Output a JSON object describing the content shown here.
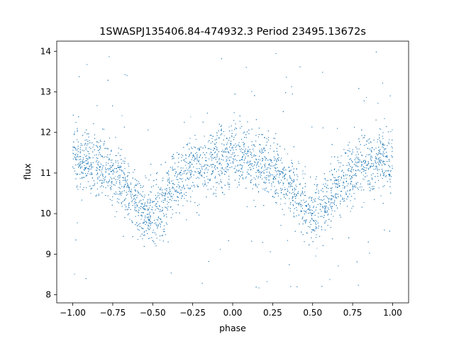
{
  "chart_data": {
    "type": "scatter",
    "title": "1SWASPJ135406.84-474932.3 Period 23495.13672s",
    "xlabel": "phase",
    "ylabel": "flux",
    "xlim": [
      -1.1,
      1.1
    ],
    "ylim": [
      7.8,
      14.25
    ],
    "x_ticks": [
      -1.0,
      -0.75,
      -0.5,
      -0.25,
      0.0,
      0.25,
      0.5,
      0.75,
      1.0
    ],
    "x_tick_labels": [
      "−1.00",
      "−0.75",
      "−0.50",
      "−0.25",
      "0.00",
      "0.25",
      "0.50",
      "0.75",
      "1.00"
    ],
    "y_ticks": [
      8,
      9,
      10,
      11,
      12,
      13,
      14
    ],
    "y_tick_labels": [
      "8",
      "9",
      "10",
      "11",
      "12",
      "13",
      "14"
    ],
    "grid": false,
    "legend": "none",
    "marker_color": "#1f77b4",
    "phase_range": [
      -1.0,
      1.0
    ],
    "light_curve": {
      "phase": [
        -1.0,
        -0.9,
        -0.8,
        -0.7,
        -0.65,
        -0.6,
        -0.55,
        -0.5,
        -0.45,
        -0.4,
        -0.35,
        -0.3,
        -0.25,
        -0.2,
        -0.1,
        0.0,
        0.1,
        0.2,
        0.25,
        0.3,
        0.35,
        0.4,
        0.45,
        0.5,
        0.55,
        0.6,
        0.65,
        0.7,
        0.8,
        0.9,
        1.0
      ],
      "mean_flux": [
        11.3,
        11.3,
        11.15,
        10.85,
        10.6,
        10.3,
        10.0,
        9.95,
        10.15,
        10.5,
        10.85,
        11.0,
        11.1,
        11.2,
        11.35,
        11.4,
        11.35,
        11.2,
        11.1,
        11.0,
        10.85,
        10.5,
        10.1,
        9.95,
        10.0,
        10.3,
        10.6,
        10.85,
        11.15,
        11.3,
        11.3
      ],
      "scatter_sigma": 0.38
    },
    "outlier_flux_range": [
      8.1,
      14.0
    ]
  }
}
